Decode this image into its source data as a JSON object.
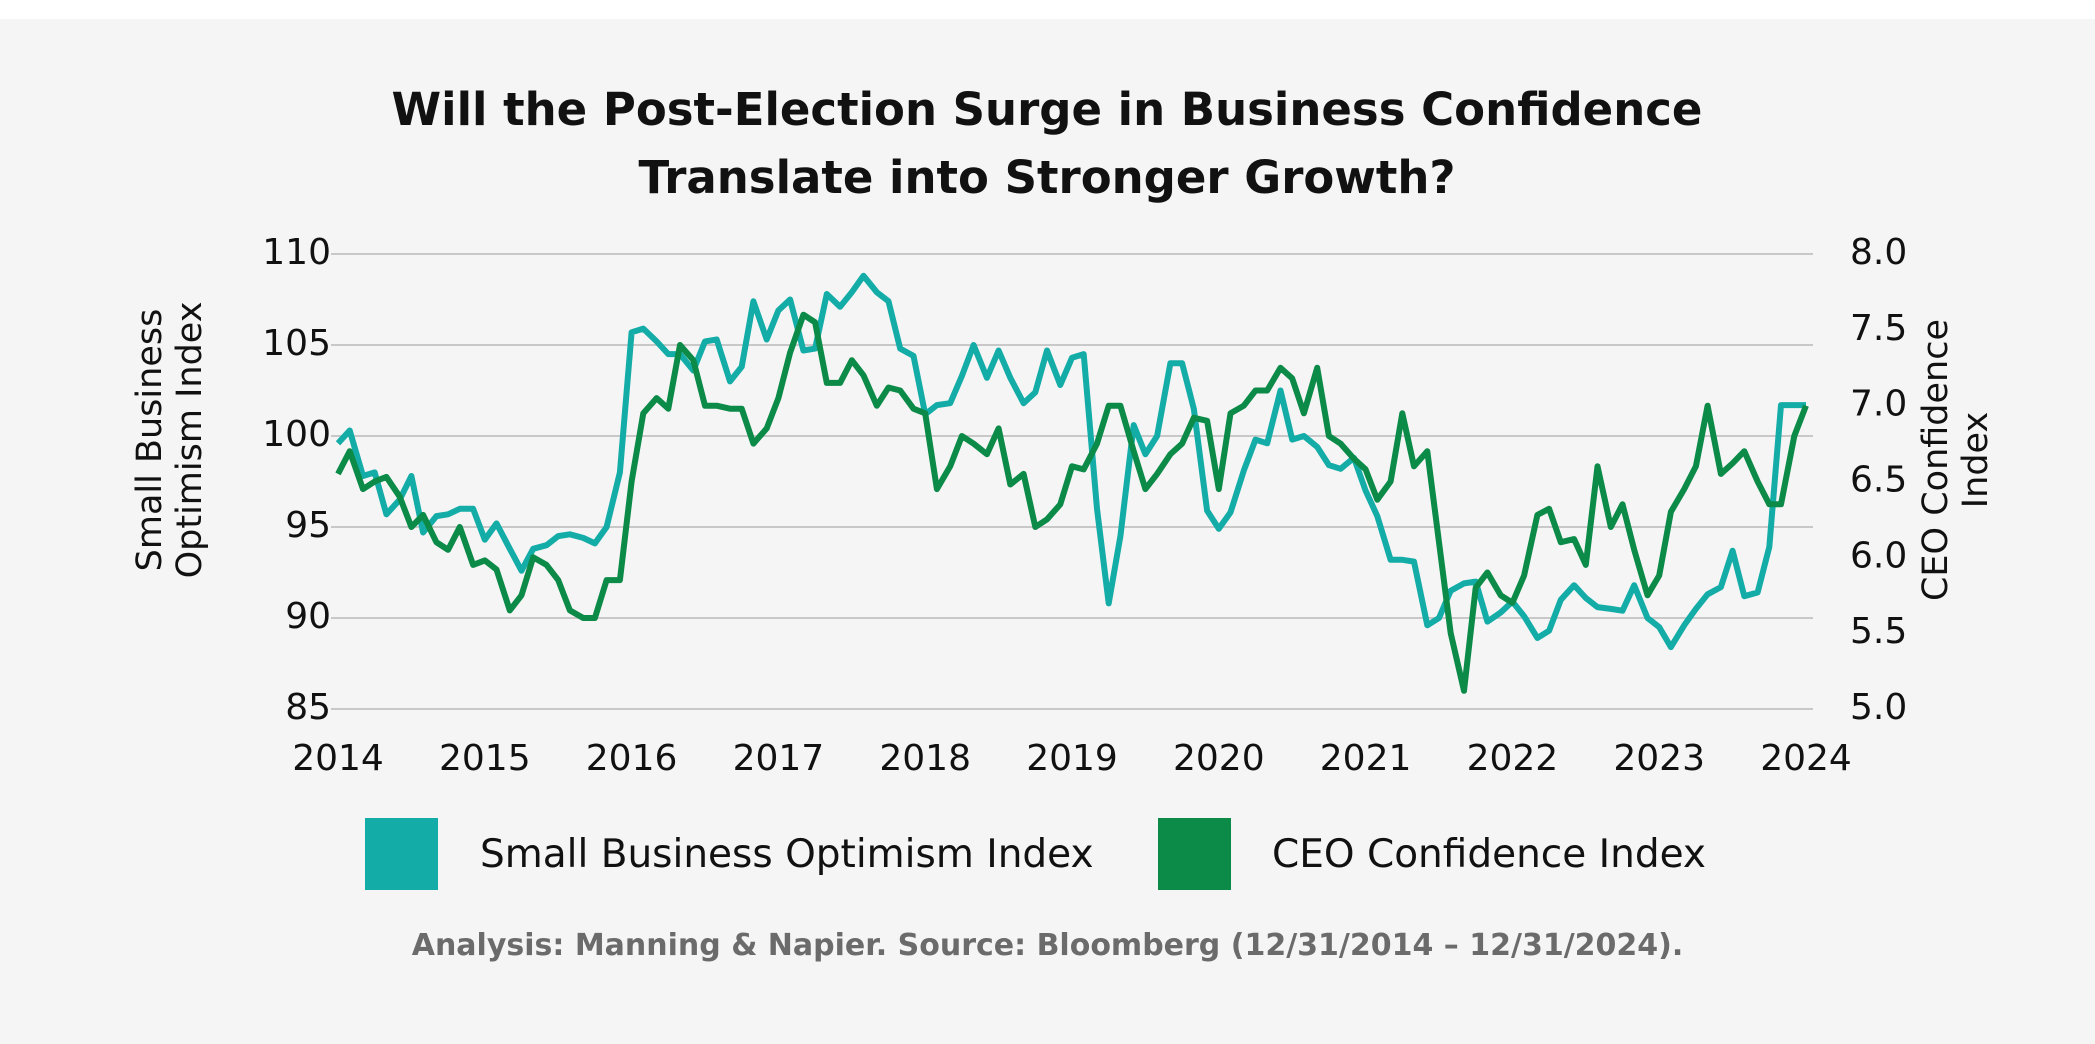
{
  "chart_data": {
    "type": "line",
    "title": "Will the Post-Election Surge in Business Confidence Translate into Stronger Growth?",
    "y_label": "Small Business Optimism Index",
    "y2_label": "CEO Confidence Index",
    "source": "Analysis: Manning & Napier. Source: Bloomberg (12/31/2014 – 12/31/2024).",
    "grid": true,
    "legend": "bottom",
    "xlim": [
      2014,
      2024
    ],
    "xticks": [
      2014,
      2015,
      2016,
      2017,
      2018,
      2019,
      2020,
      2021,
      2022,
      2023,
      2024
    ],
    "ylim": [
      85,
      110
    ],
    "yticks": [
      85,
      90,
      95,
      100,
      105,
      110
    ],
    "y2lim": [
      5,
      8
    ],
    "y2ticks": [
      {
        "value": 5,
        "label": "5.0"
      },
      {
        "value": 5.5,
        "label": "5.5"
      },
      {
        "value": 6,
        "label": "6.0"
      },
      {
        "value": 6.5,
        "label": "6.5"
      },
      {
        "value": 7,
        "label": "7.0"
      },
      {
        "value": 7.5,
        "label": "7.5"
      },
      {
        "value": 8,
        "label": "8.0"
      }
    ],
    "x": [
      2014,
      2014.08,
      2014.17,
      2014.25,
      2014.33,
      2014.42,
      2014.5,
      2014.58,
      2014.67,
      2014.75,
      2014.83,
      2014.92,
      2015,
      2015.08,
      2015.17,
      2015.25,
      2015.33,
      2015.42,
      2015.5,
      2015.58,
      2015.67,
      2015.75,
      2015.83,
      2015.92,
      2016,
      2016.08,
      2016.17,
      2016.25,
      2016.33,
      2016.42,
      2016.5,
      2016.58,
      2016.67,
      2016.75,
      2016.83,
      2016.92,
      2017,
      2017.08,
      2017.17,
      2017.25,
      2017.33,
      2017.42,
      2017.5,
      2017.58,
      2017.67,
      2017.75,
      2017.83,
      2017.92,
      2018,
      2018.08,
      2018.17,
      2018.25,
      2018.33,
      2018.42,
      2018.5,
      2018.58,
      2018.67,
      2018.75,
      2018.83,
      2018.92,
      2019,
      2019.08,
      2019.17,
      2019.25,
      2019.33,
      2019.42,
      2019.5,
      2019.58,
      2019.67,
      2019.75,
      2019.83,
      2019.92,
      2020,
      2020.08,
      2020.17,
      2020.25,
      2020.33,
      2020.42,
      2020.5,
      2020.58,
      2020.67,
      2020.75,
      2020.83,
      2020.92,
      2021,
      2021.08,
      2021.17,
      2021.25,
      2021.33,
      2021.42,
      2021.5,
      2021.58,
      2021.67,
      2021.75,
      2021.83,
      2021.92,
      2022,
      2022.08,
      2022.17,
      2022.25,
      2022.33,
      2022.42,
      2022.5,
      2022.58,
      2022.67,
      2022.75,
      2022.83,
      2022.92,
      2023,
      2023.08,
      2023.17,
      2023.25,
      2023.33,
      2023.42,
      2023.5,
      2023.58,
      2023.67,
      2023.75,
      2023.83,
      2023.92,
      2024
    ],
    "series": [
      {
        "name": "Small Business Optimism Index",
        "color": "#14aca7",
        "axis": "y",
        "values": [
          99.6,
          100.3,
          97.8,
          98,
          95.7,
          96.5,
          97.8,
          94.7,
          95.6,
          95.7,
          96,
          96,
          94.3,
          95.2,
          93.8,
          92.6,
          93.8,
          94,
          94.5,
          94.6,
          94.4,
          94.1,
          95,
          98,
          105.7,
          105.9,
          105.2,
          104.5,
          104.5,
          103.6,
          105.2,
          105.3,
          103,
          103.8,
          107.4,
          105.3,
          106.9,
          107.5,
          104.7,
          104.8,
          107.8,
          107.1,
          107.9,
          108.8,
          107.9,
          107.4,
          104.8,
          104.4,
          101.2,
          101.7,
          101.8,
          103.3,
          105,
          103.2,
          104.7,
          103.2,
          101.8,
          102.4,
          104.7,
          102.8,
          104.3,
          104.5,
          96,
          90.8,
          94.5,
          100.6,
          99,
          100,
          104,
          104,
          101.5,
          95.9,
          94.9,
          95.8,
          98.1,
          99.8,
          99.6,
          102.5,
          99.8,
          100,
          99.4,
          98.4,
          98.2,
          98.8,
          97,
          95.6,
          93.2,
          93.2,
          93.1,
          89.6,
          90,
          91.5,
          91.9,
          92,
          89.8,
          90.3,
          90.9,
          90.1,
          88.9,
          89.3,
          91,
          91.8,
          91.1,
          90.6,
          90.5,
          90.4,
          91.8,
          90,
          89.5,
          88.4,
          89.6,
          90.5,
          91.3,
          91.7,
          93.7,
          91.2,
          91.4,
          93.9,
          101.7,
          101.7,
          101.7
        ]
      },
      {
        "name": "CEO Confidence Index",
        "color": "#0b8a48",
        "axis": "y2",
        "values": [
          6.55,
          6.7,
          6.45,
          6.5,
          6.53,
          6.4,
          6.2,
          6.28,
          6.1,
          6.05,
          6.2,
          5.95,
          5.98,
          5.92,
          5.65,
          5.75,
          6,
          5.95,
          5.85,
          5.65,
          5.6,
          5.6,
          5.85,
          5.85,
          6.5,
          6.95,
          7.05,
          6.98,
          7.4,
          7.3,
          7,
          7,
          6.98,
          6.98,
          6.75,
          6.85,
          7.05,
          7.35,
          7.6,
          7.55,
          7.15,
          7.15,
          7.3,
          7.2,
          7,
          7.12,
          7.1,
          6.98,
          6.95,
          6.45,
          6.6,
          6.8,
          6.75,
          6.68,
          6.85,
          6.48,
          6.55,
          6.2,
          6.25,
          6.35,
          6.6,
          6.58,
          6.75,
          7,
          7,
          6.7,
          6.45,
          6.55,
          6.68,
          6.75,
          6.92,
          6.9,
          6.45,
          6.95,
          7,
          7.1,
          7.1,
          7.25,
          7.18,
          6.95,
          7.25,
          6.8,
          6.75,
          6.65,
          6.58,
          6.38,
          6.5,
          6.95,
          6.6,
          6.7,
          6.1,
          5.5,
          5.12,
          5.8,
          5.9,
          5.75,
          5.7,
          5.88,
          6.28,
          6.32,
          6.1,
          6.12,
          5.95,
          6.6,
          6.2,
          6.35,
          6.05,
          5.75,
          5.88,
          6.3,
          6.45,
          6.6,
          7,
          6.55,
          6.62,
          6.7,
          6.5,
          6.35,
          6.35,
          6.8,
          7
        ]
      }
    ]
  }
}
